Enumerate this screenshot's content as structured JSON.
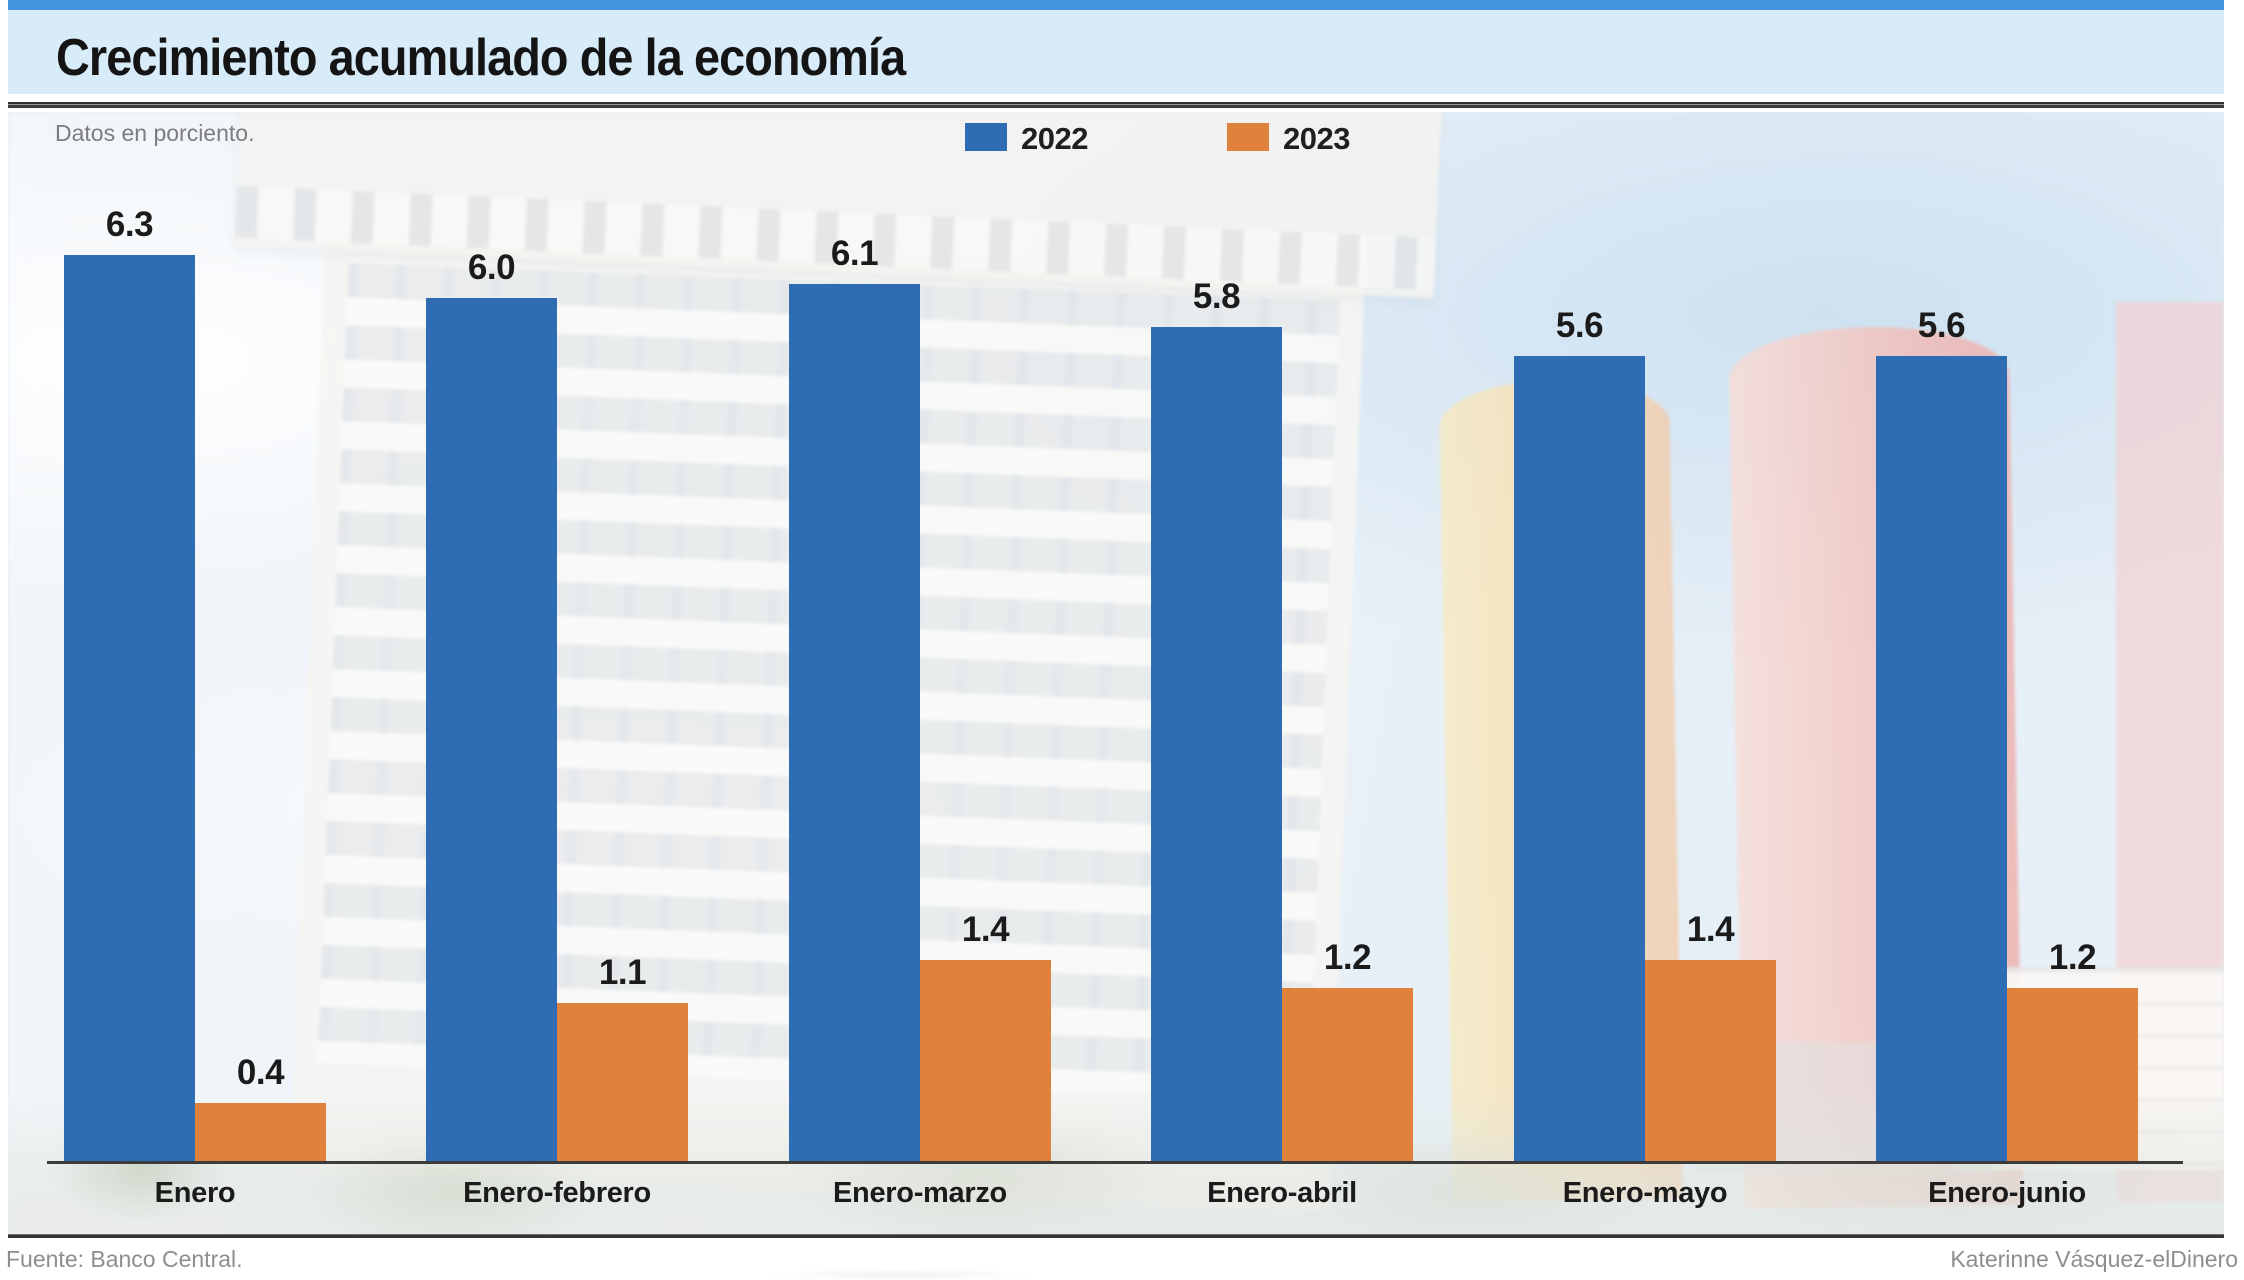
{
  "header": {
    "title": "Crecimiento acumulado de la economía"
  },
  "subtitle": "Datos en porciento.",
  "legend": [
    {
      "label": "2022",
      "color": "#2e6db4"
    },
    {
      "label": "2023",
      "color": "#e0813c"
    }
  ],
  "footer": {
    "source": "Fuente: Banco Central.",
    "credit": "Katerinne Vásquez-elDinero"
  },
  "colors": {
    "accent_bar": "#4496dc",
    "title_band": "#d8ebf8",
    "series_2022": "#2e6db4",
    "series_2023": "#e0813c",
    "baseline": "#3c3c3c"
  },
  "chart_data": {
    "type": "bar",
    "title": "Crecimiento acumulado de la economía",
    "subtitle": "Datos en porciento.",
    "unit": "percent",
    "categories": [
      "Enero",
      "Enero-febrero",
      "Enero-marzo",
      "Enero-abril",
      "Enero-mayo",
      "Enero-junio"
    ],
    "series": [
      {
        "name": "2022",
        "color": "#2e6db4",
        "values": [
          6.3,
          6.0,
          6.1,
          5.8,
          5.6,
          5.6
        ]
      },
      {
        "name": "2023",
        "color": "#e0813c",
        "values": [
          0.4,
          1.1,
          1.4,
          1.2,
          1.4,
          1.2
        ]
      }
    ],
    "ylim": [
      0,
      7.3
    ],
    "grid": false,
    "value_labels": true,
    "legend_position": "top",
    "xlabel": "",
    "ylabel": ""
  }
}
